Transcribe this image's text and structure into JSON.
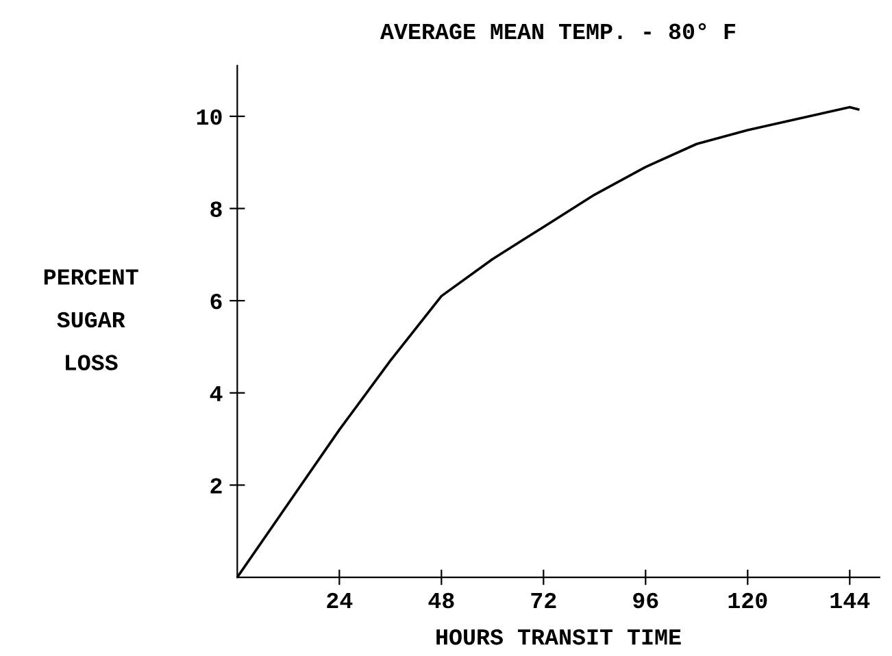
{
  "chart_data": {
    "type": "line",
    "title": "AVERAGE MEAN TEMP. - 80° F",
    "xlabel": "HOURS TRANSIT TIME",
    "ylabel": "PERCENT\nSUGAR\nLOSS",
    "x": [
      0,
      12,
      24,
      36,
      48,
      60,
      72,
      84,
      96,
      108,
      120,
      132,
      144,
      146
    ],
    "series": [
      {
        "color": "#000000",
        "values": [
          0,
          1.6,
          3.2,
          4.7,
          6.1,
          6.9,
          7.6,
          8.3,
          8.9,
          9.4,
          9.7,
          9.95,
          10.2,
          10.15
        ]
      }
    ],
    "xlim": [
      0,
      151
    ],
    "ylim": [
      0,
      11.1
    ],
    "xticks": [
      24,
      48,
      72,
      96,
      120,
      144
    ],
    "yticks": [
      2,
      4,
      6,
      8,
      10
    ],
    "grid": false,
    "legend": false,
    "marker": "none",
    "line_style": "solid"
  }
}
